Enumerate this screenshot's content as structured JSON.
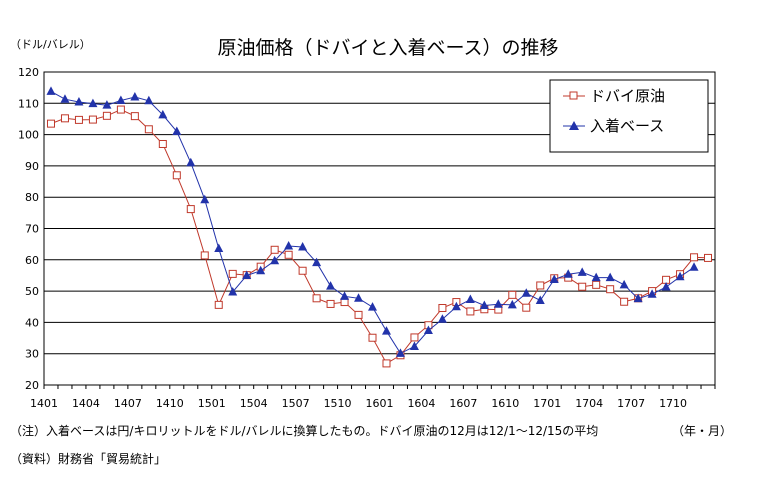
{
  "chart_data": {
    "type": "line",
    "title": "原油価格（ドバイと入着ベース）の推移",
    "ylabel": "（ドル/バレル）",
    "xlabel": "（年・月）",
    "ylim": [
      20,
      120
    ],
    "yticks": [
      20,
      30,
      40,
      50,
      60,
      70,
      80,
      90,
      100,
      110,
      120
    ],
    "grid": "horizontal",
    "legend_position": "top-right",
    "x": [
      "1401",
      "1402",
      "1403",
      "1404",
      "1405",
      "1406",
      "1407",
      "1408",
      "1409",
      "1410",
      "1411",
      "1412",
      "1501",
      "1502",
      "1503",
      "1504",
      "1505",
      "1506",
      "1507",
      "1508",
      "1509",
      "1510",
      "1511",
      "1512",
      "1601",
      "1602",
      "1603",
      "1604",
      "1605",
      "1606",
      "1607",
      "1608",
      "1609",
      "1610",
      "1611",
      "1612",
      "1701",
      "1702",
      "1703",
      "1704",
      "1705",
      "1706",
      "1707",
      "1708",
      "1709",
      "1710",
      "1711",
      "1712"
    ],
    "xtick_labels": [
      "1401",
      "1404",
      "1407",
      "1410",
      "1501",
      "1504",
      "1507",
      "1510",
      "1601",
      "1604",
      "1607",
      "1610",
      "1701",
      "1704",
      "1707",
      "1710"
    ],
    "series": [
      {
        "name": "ドバイ原油",
        "color": "#c0392b",
        "marker": "square-open",
        "values": [
          103.5,
          105.2,
          104.7,
          104.8,
          106,
          108,
          105.9,
          101.7,
          97,
          87,
          76.2,
          61.4,
          45.6,
          55.5,
          55.1,
          57.8,
          63.2,
          61.6,
          56.5,
          47.7,
          45.9,
          46.5,
          42.4,
          35.1,
          26.9,
          29.5,
          35.2,
          39.1,
          44.6,
          46.5,
          43.5,
          44.2,
          44.1,
          48.8,
          44.7,
          51.8,
          54.1,
          54.3,
          51.4,
          52,
          50.6,
          46.6,
          47.7,
          50,
          53.6,
          55.4,
          60.8,
          60.6
        ]
      },
      {
        "name": "入着ベース",
        "color": "#2233aa",
        "marker": "triangle-filled",
        "values": [
          113.8,
          111.3,
          110.4,
          109.9,
          109.4,
          110.9,
          112,
          110.8,
          106.3,
          101,
          91,
          79.2,
          63.6,
          49.7,
          55,
          56.5,
          59.7,
          64.4,
          64.1,
          59.1,
          51.6,
          48.3,
          47.7,
          44.9,
          37.2,
          30.1,
          32.3,
          37.4,
          41,
          45,
          47.3,
          45.4,
          45.8,
          45.6,
          49.3,
          47,
          53.7,
          55.4,
          56,
          54.3,
          54.3,
          52,
          47.6,
          49,
          51.3,
          54.6,
          57.6,
          null
        ]
      }
    ]
  },
  "notes": {
    "note": "（注）入着ベースは円/キロリットルをドル/バレルに換算したもの。ドバイ原油の12月は12/1～12/15の平均",
    "source": "（資料）財務省「貿易統計」"
  }
}
